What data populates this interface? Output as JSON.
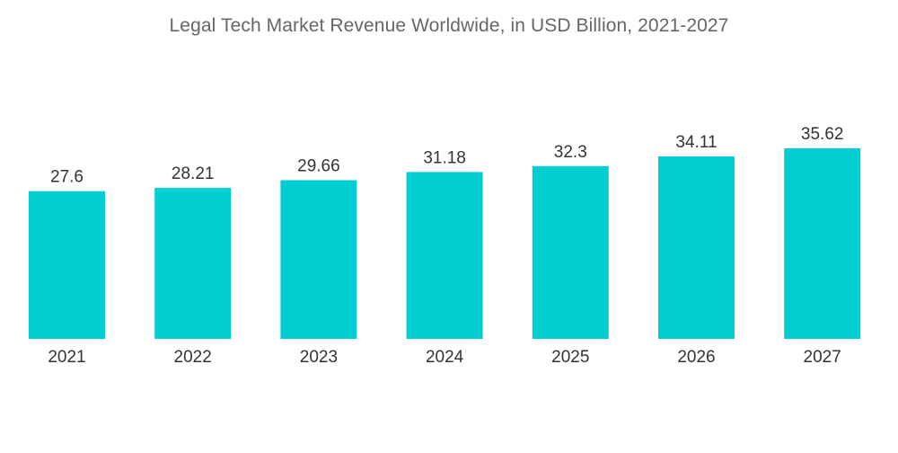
{
  "chart_data": {
    "type": "bar",
    "title": "Legal Tech Market Revenue Worldwide, in USD Billion, 2021-2027",
    "xlabel": "",
    "ylabel": "",
    "categories": [
      "2021",
      "2022",
      "2023",
      "2024",
      "2025",
      "2026",
      "2027"
    ],
    "values": [
      27.6,
      28.21,
      29.66,
      31.18,
      32.3,
      34.11,
      35.62
    ],
    "value_labels": [
      "27.6",
      "28.21",
      "29.66",
      "31.18",
      "32.3",
      "34.11",
      "35.62"
    ],
    "ylim": [
      0,
      35.62
    ],
    "grid": false,
    "legend": "none",
    "colors": {
      "bar": "#00CED1",
      "title": "#666666",
      "text": "#333333"
    }
  }
}
